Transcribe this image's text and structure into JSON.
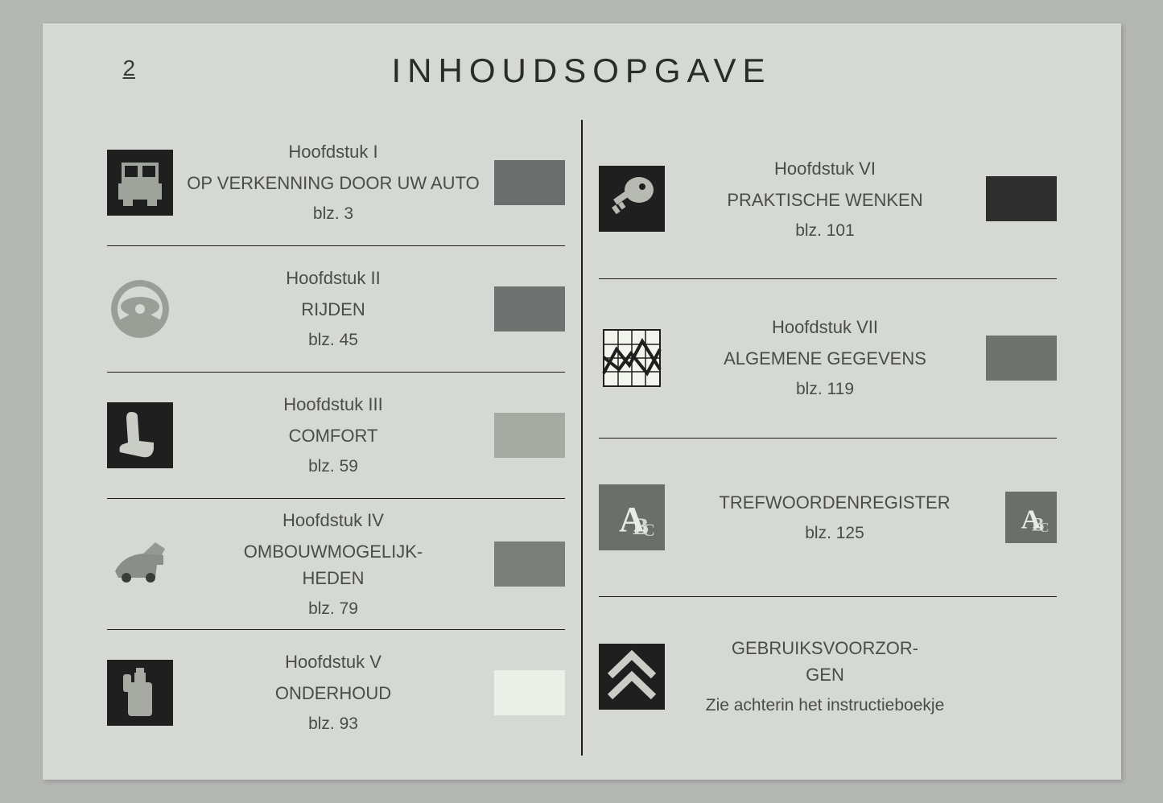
{
  "page_number": "2",
  "title": "INHOUDSOPGAVE",
  "colors": {
    "page_bg": "#d6d8d3",
    "outer_bg": "#b5b7b5",
    "text": "#4a4c48",
    "rule": "#1a1a1a"
  },
  "left": [
    {
      "chapter": "Hoofdstuk I",
      "name": "OP VERKENNING DOOR UW AUTO",
      "page": "blz. 3",
      "swatch": "#6a6e6d",
      "icon": "car-front",
      "icon_bg": "#1f1f1f",
      "icon_fg": "#9fa49c"
    },
    {
      "chapter": "Hoofdstuk II",
      "name": "RIJDEN",
      "page": "blz. 45",
      "swatch": "#6e7270",
      "icon": "steering-wheel",
      "icon_bg": "#d6d8d3",
      "icon_fg": "#9a9e97"
    },
    {
      "chapter": "Hoofdstuk III",
      "name": "COMFORT",
      "page": "blz. 59",
      "swatch": "#a6aaa3",
      "icon": "seat",
      "icon_bg": "#1f1f1f",
      "icon_fg": "#c9cdc6"
    },
    {
      "chapter": "Hoofdstuk IV",
      "name": "OMBOUWMOGELIJK-HEDEN",
      "page": "blz. 79",
      "swatch": "#7a7e7a",
      "icon": "trunk",
      "icon_bg": "#d6d8d3",
      "icon_fg": "#8a8e88"
    },
    {
      "chapter": "Hoofdstuk V",
      "name": "ONDERHOUD",
      "page": "blz. 93",
      "swatch": "#ecefe8",
      "icon": "oil-can",
      "icon_bg": "#1f1f1f",
      "icon_fg": "#a6aaa3"
    }
  ],
  "right": [
    {
      "chapter": "Hoofdstuk VI",
      "name": "PRAKTISCHE WENKEN",
      "page": "blz. 101",
      "swatch": "#2e2e2e",
      "icon": "key",
      "icon_bg": "#1f1f1f",
      "icon_fg": "#b6bab2"
    },
    {
      "chapter": "Hoofdstuk VII",
      "name": "ALGEMENE GEGEVENS",
      "page": "blz. 119",
      "swatch": "#6f7370",
      "icon": "graph",
      "icon_bg": "#d6d8d3",
      "icon_fg": "#1f1f1f"
    },
    {
      "chapter": "",
      "name": "TREFWOORDENREGISTER",
      "page": "blz. 125",
      "swatch": null,
      "icon": "abc",
      "icon_bg": "#6b6f6b",
      "icon_fg": "#e8ebe4",
      "end_icon": "abc",
      "end_icon_bg": "#6b6f6b",
      "end_icon_fg": "#e8ebe4"
    },
    {
      "chapter": "",
      "name": "GEBRUIKSVOORZOR-GEN",
      "page": "Zie achterin het instructieboekje",
      "swatch": null,
      "icon": "chevrons",
      "icon_bg": "#1f1f1f",
      "icon_fg": "#c9cdc6"
    }
  ]
}
